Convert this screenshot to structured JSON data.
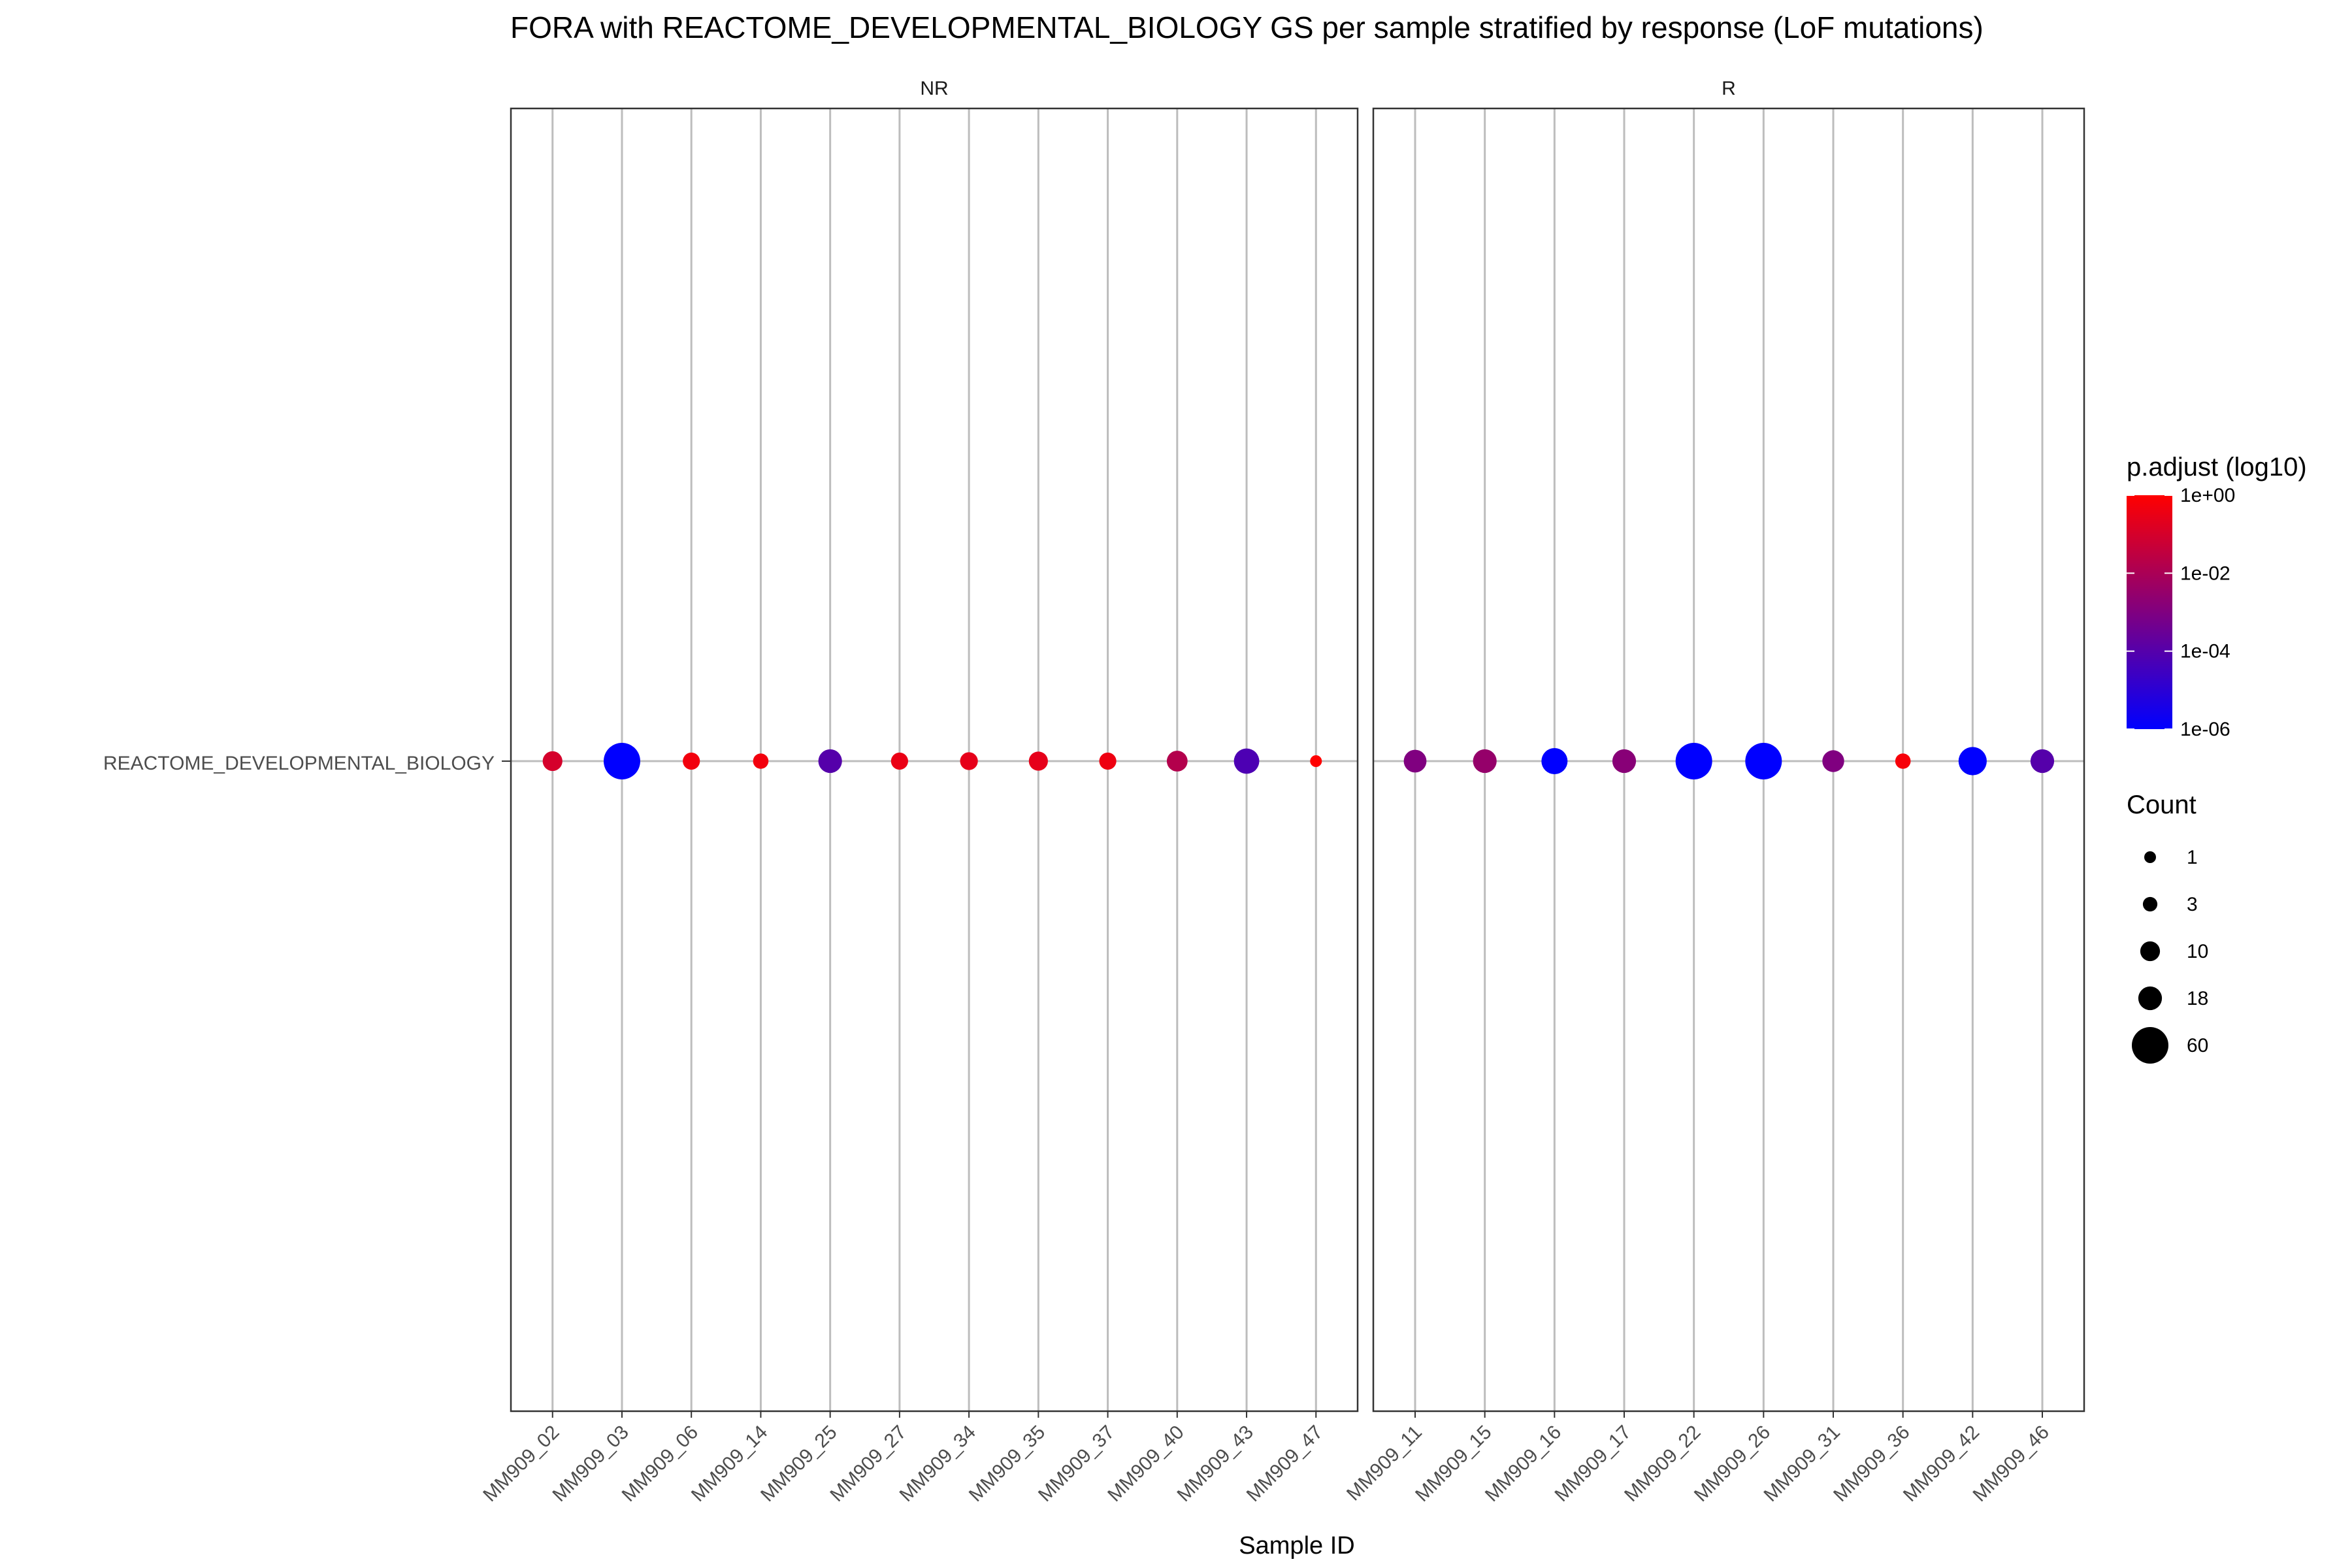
{
  "chart_data": {
    "type": "scatter",
    "title": "FORA with REACTOME_DEVELOPMENTAL_BIOLOGY GS per sample stratified by response (LoF mutations)",
    "xlabel": "Sample ID",
    "ylabel": "",
    "y_category": "REACTOME_DEVELOPMENTAL_BIOLOGY",
    "grid": true,
    "legend_position": "right",
    "facets": [
      {
        "name": "NR",
        "points": [
          {
            "sample": "MM909_02",
            "count": 10,
            "log10_padj": -1.0
          },
          {
            "sample": "MM909_03",
            "count": 60,
            "log10_padj": -6.0
          },
          {
            "sample": "MM909_06",
            "count": 6,
            "log10_padj": -0.3
          },
          {
            "sample": "MM909_14",
            "count": 4,
            "log10_padj": -0.3
          },
          {
            "sample": "MM909_25",
            "count": 18,
            "log10_padj": -4.0
          },
          {
            "sample": "MM909_27",
            "count": 6,
            "log10_padj": -0.5
          },
          {
            "sample": "MM909_34",
            "count": 7,
            "log10_padj": -0.6
          },
          {
            "sample": "MM909_35",
            "count": 9,
            "log10_padj": -0.6
          },
          {
            "sample": "MM909_37",
            "count": 6,
            "log10_padj": -0.4
          },
          {
            "sample": "MM909_40",
            "count": 12,
            "log10_padj": -1.8
          },
          {
            "sample": "MM909_43",
            "count": 22,
            "log10_padj": -4.2
          },
          {
            "sample": "MM909_47",
            "count": 1,
            "log10_padj": 0.0
          }
        ]
      },
      {
        "name": "R",
        "points": [
          {
            "sample": "MM909_11",
            "count": 16,
            "log10_padj": -3.0
          },
          {
            "sample": "MM909_15",
            "count": 18,
            "log10_padj": -2.5
          },
          {
            "sample": "MM909_16",
            "count": 24,
            "log10_padj": -6.0
          },
          {
            "sample": "MM909_17",
            "count": 18,
            "log10_padj": -2.8
          },
          {
            "sample": "MM909_22",
            "count": 60,
            "log10_padj": -6.0
          },
          {
            "sample": "MM909_26",
            "count": 60,
            "log10_padj": -6.0
          },
          {
            "sample": "MM909_31",
            "count": 14,
            "log10_padj": -3.0
          },
          {
            "sample": "MM909_36",
            "count": 4,
            "log10_padj": -0.2
          },
          {
            "sample": "MM909_42",
            "count": 30,
            "log10_padj": -6.0
          },
          {
            "sample": "MM909_46",
            "count": 18,
            "log10_padj": -4.0
          }
        ]
      }
    ],
    "color_legend": {
      "title": "p.adjust (log10)",
      "ticks": [
        "1e+00",
        "1e-02",
        "1e-04",
        "1e-06"
      ],
      "tick_log10_values": [
        0,
        -2,
        -4,
        -6
      ],
      "range_log10": [
        -6,
        0
      ],
      "low_color": "#0000FF",
      "high_color": "#FF0000"
    },
    "size_legend": {
      "title": "Count",
      "breaks": [
        1,
        3,
        10,
        18,
        60
      ]
    }
  }
}
